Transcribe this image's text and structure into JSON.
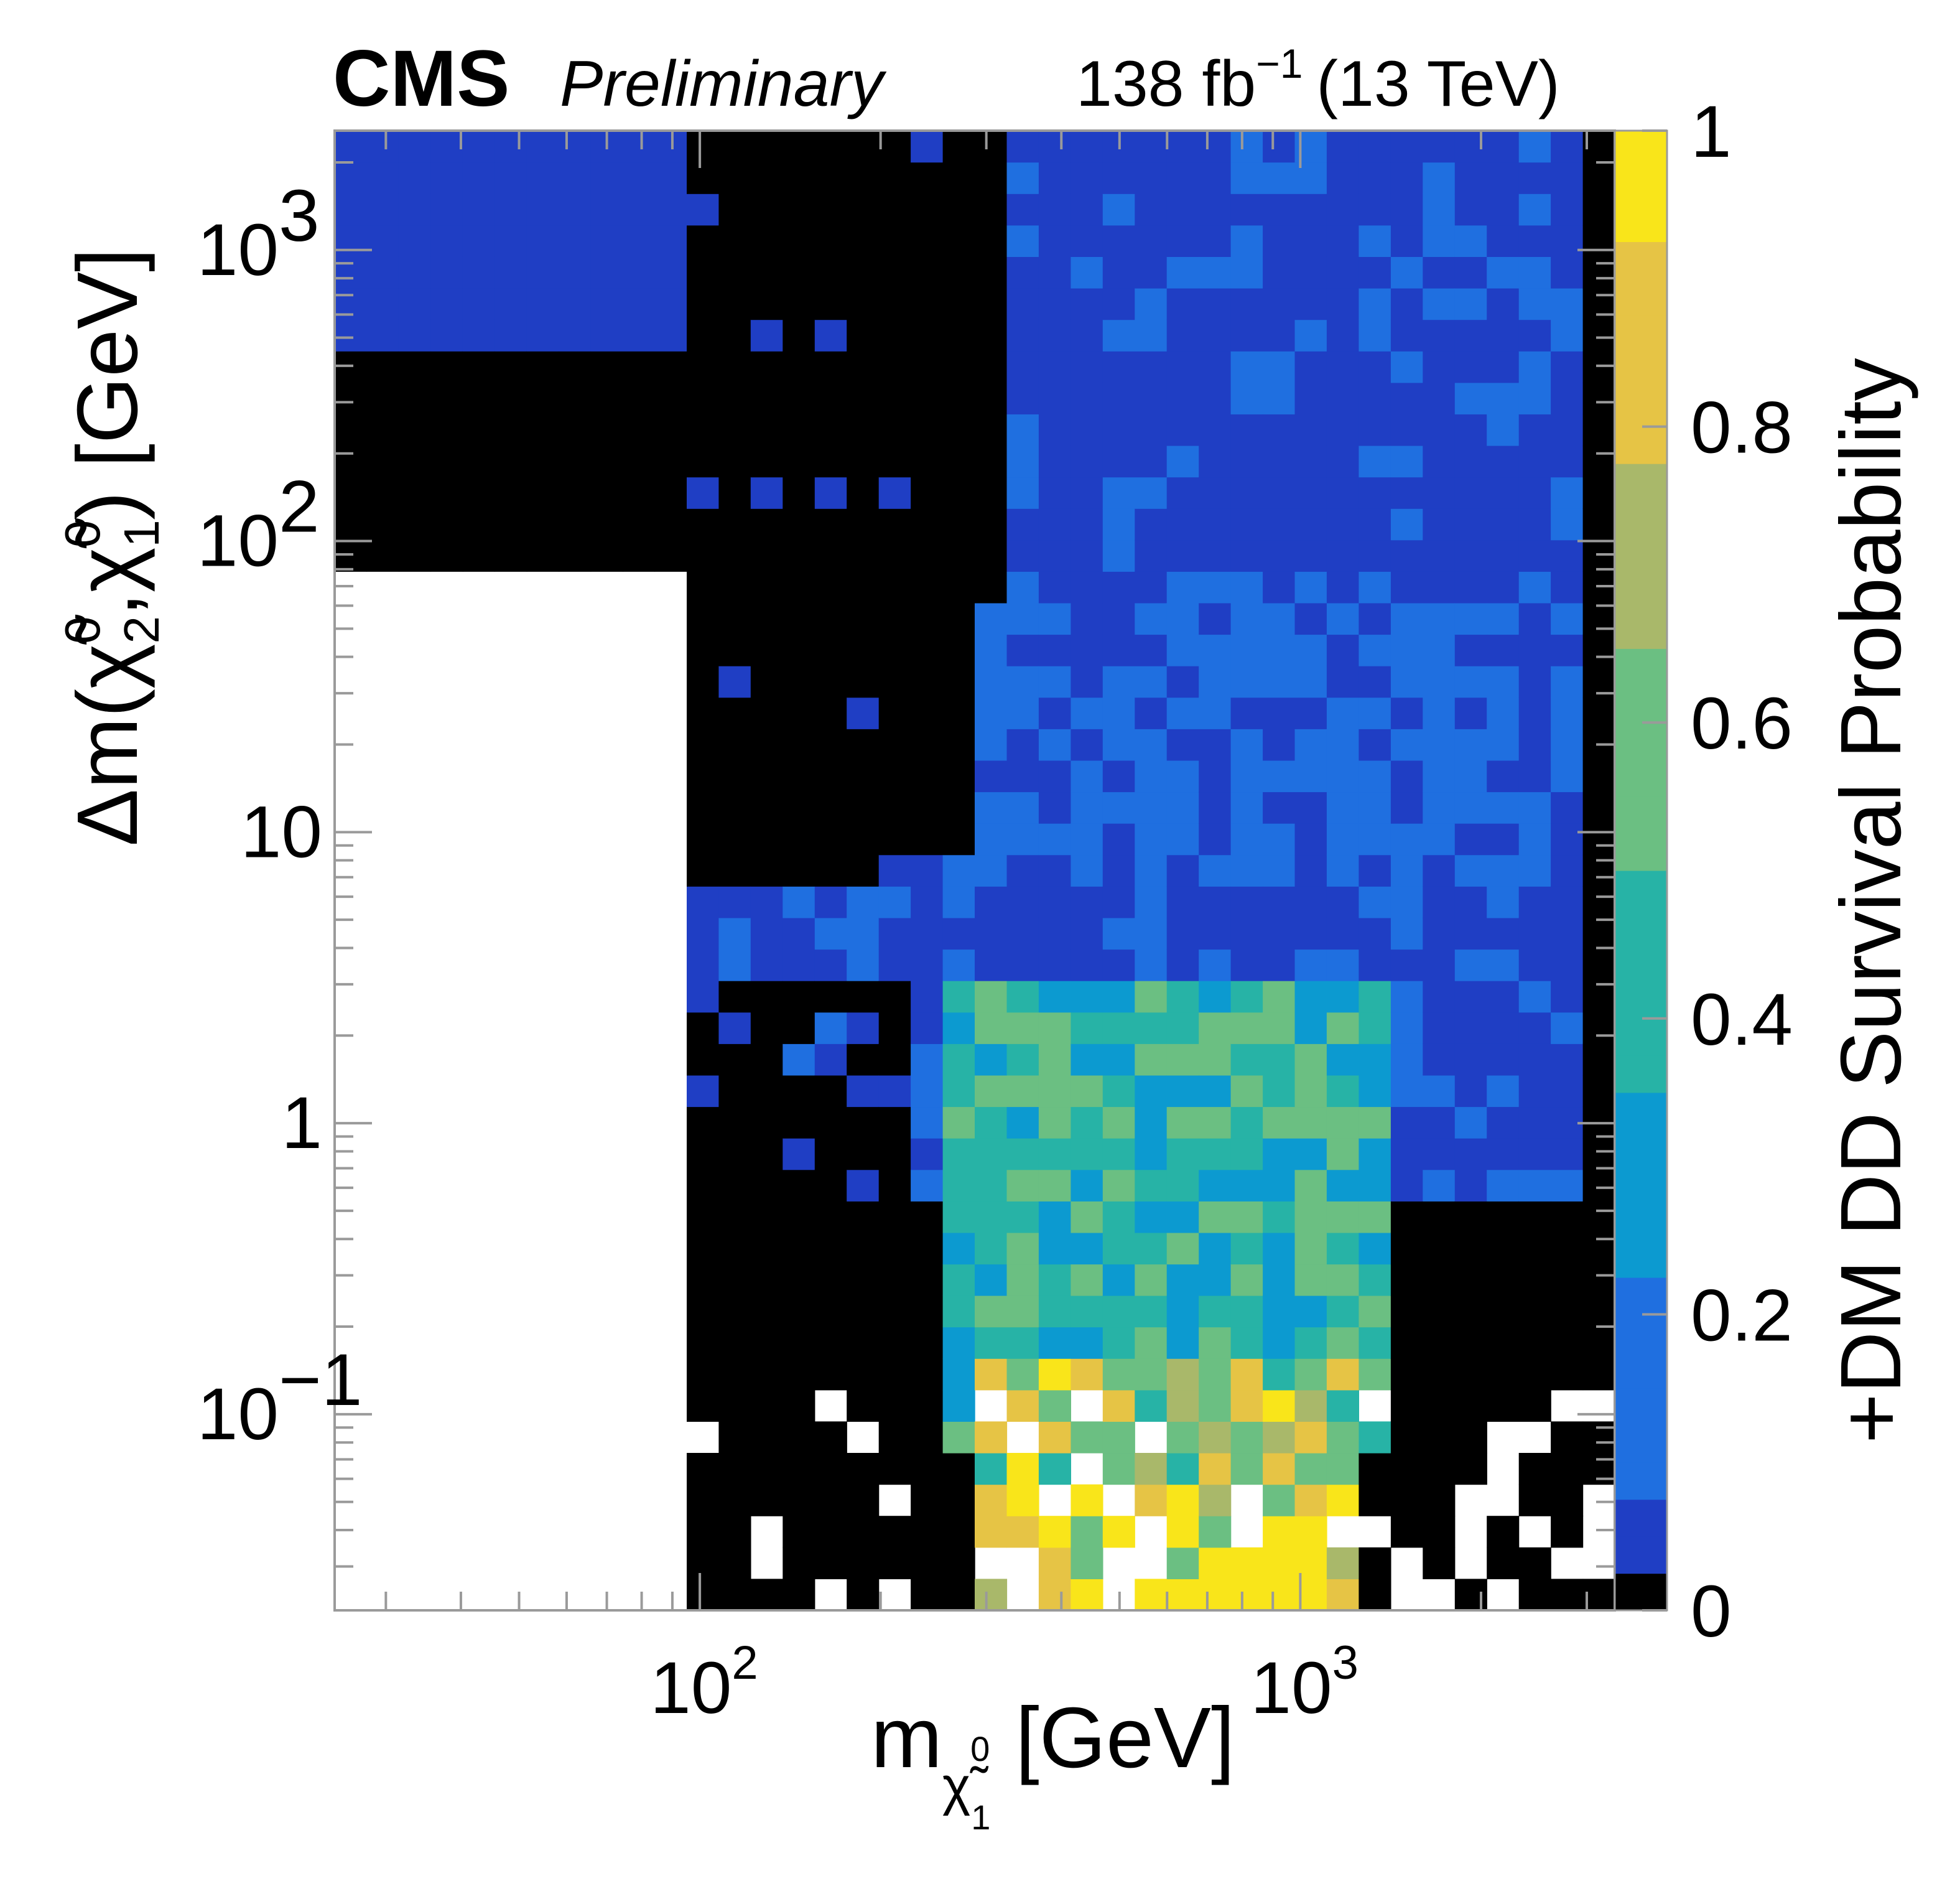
{
  "header": {
    "experiment": "CMS",
    "status": "Preliminary",
    "luminosity": "138 fb",
    "luminosity_exponent": "−1",
    "energy": "(13 TeV)"
  },
  "chart_data": {
    "type": "heatmap",
    "title": "",
    "xlabel": "m",
    "xlabel_subscript": "χ̃",
    "xlabel_subsub": "1",
    "xlabel_subsup": "0",
    "xlabel_unit": "[GeV]",
    "ylabel": "Δm(χ̃",
    "ylabel_sub1": "2",
    "ylabel_sup1": "0",
    "ylabel_mid": ",χ̃",
    "ylabel_sub2": "1",
    "ylabel_sup2": "0",
    "ylabel_unit": ") [GeV]",
    "zlabel": "+DM DD Survival Probability",
    "x_scale": "log",
    "y_scale": "log",
    "xlim": [
      24.65,
      3340
    ],
    "ylim": [
      0.0212,
      2570
    ],
    "zlim": [
      0,
      1
    ],
    "x_ticks": [
      {
        "value": 100,
        "base": "10",
        "exp": "2"
      },
      {
        "value": 1000,
        "base": "10",
        "exp": "3"
      }
    ],
    "y_ticks": [
      {
        "value": 0.1,
        "label": "10",
        "exp": "−1"
      },
      {
        "value": 1,
        "label": "1",
        "exp": ""
      },
      {
        "value": 10,
        "label": "10",
        "exp": ""
      },
      {
        "value": 100,
        "label": "10",
        "exp": "2"
      },
      {
        "value": 1000,
        "label": "10",
        "exp": "3"
      }
    ],
    "z_ticks": [
      {
        "value": 0,
        "label": "0"
      },
      {
        "value": 0.2,
        "label": "0.2"
      },
      {
        "value": 0.4,
        "label": "0.4"
      },
      {
        "value": 0.6,
        "label": "0.6"
      },
      {
        "value": 0.8,
        "label": "0.8"
      },
      {
        "value": 1,
        "label": "1"
      }
    ],
    "colormap": [
      "#000000",
      "#1f3ec4",
      "#1f6fe0",
      "#0c9ad0",
      "#27b3a6",
      "#6bbf82",
      "#a9b86a",
      "#e6c445",
      "#f9e51a"
    ],
    "grid": {
      "nx": 40,
      "ny": 47
    },
    "regions": [
      {
        "name": "upper-left-band",
        "x": [
          25,
          95
        ],
        "y": [
          500,
          2570
        ],
        "value": 0.03
      },
      {
        "name": "upper-right-band",
        "x": [
          310,
          2800
        ],
        "y": [
          60,
          2570
        ],
        "value": 0.06
      },
      {
        "name": "mid-right-band",
        "x": [
          200,
          2800
        ],
        "y": [
          7,
          60
        ],
        "value": 0.08
      },
      {
        "name": "lower-band",
        "x": [
          100,
          2800
        ],
        "y": [
          0.5,
          7
        ],
        "value": 0.06
      },
      {
        "name": "compressed-core",
        "x": [
          260,
          1400
        ],
        "y": [
          0.08,
          3
        ],
        "value": 0.45
      },
      {
        "name": "compressed-edge",
        "x": [
          300,
          1300
        ],
        "y": [
          0.0212,
          0.15
        ],
        "value": 0.7
      }
    ]
  }
}
